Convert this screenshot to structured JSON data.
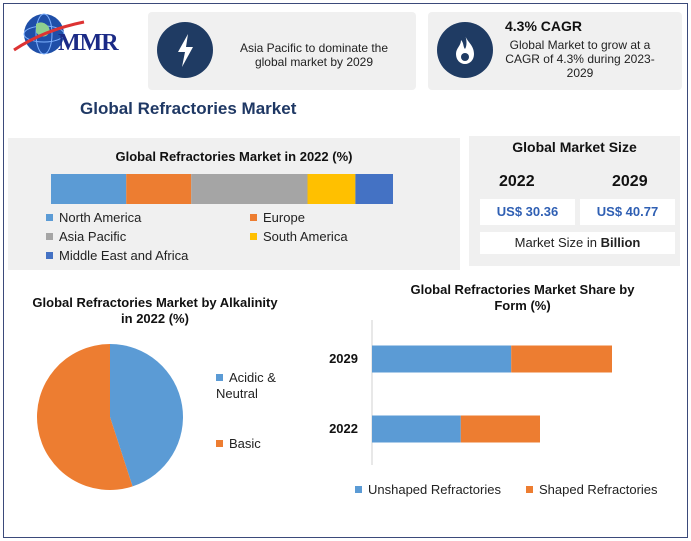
{
  "logo": {
    "text": "MMR"
  },
  "highlights": [
    {
      "icon": "lightning-icon",
      "text": "Asia Pacific to dominate the global market by 2029"
    },
    {
      "icon": "flame-icon",
      "heading": "4.3% CAGR",
      "text": "Global Market to grow at a CAGR of 4.3% during 2023-2029"
    }
  ],
  "main_title": "Global Refractories Market",
  "market_size": {
    "title": "Global Market Size",
    "years": [
      "2022",
      "2029"
    ],
    "values": [
      "US$ 30.36",
      "US$ 40.77"
    ],
    "unit_label": "Market Size in ",
    "unit_bold": "Billion"
  },
  "colors": {
    "blue": "#5b9bd5",
    "orange": "#ed7d31",
    "gray": "#a5a5a5",
    "yellow": "#ffc000",
    "darkblue": "#4472c4"
  },
  "chart_data": [
    {
      "type": "bar",
      "title": "Global Refractories Market in 2022 (%)",
      "stacked": true,
      "orientation": "horizontal",
      "series": [
        {
          "name": "North America",
          "values": [
            22
          ],
          "color": "#5b9bd5"
        },
        {
          "name": "Europe",
          "values": [
            19
          ],
          "color": "#ed7d31"
        },
        {
          "name": "Asia Pacific",
          "values": [
            34
          ],
          "color": "#a5a5a5"
        },
        {
          "name": "South America",
          "values": [
            14
          ],
          "color": "#ffc000"
        },
        {
          "name": "Middle East and Africa",
          "values": [
            11
          ],
          "color": "#4472c4"
        }
      ]
    },
    {
      "type": "pie",
      "title": "Global Refractories Market by Alkalinity in 2022 (%)",
      "labels": [
        "Acidic & Neutral",
        "Basic"
      ],
      "values": [
        45,
        55
      ],
      "colors": [
        "#5b9bd5",
        "#ed7d31"
      ]
    },
    {
      "type": "bar",
      "title": "Global Refractories Market Share by Form (%)",
      "stacked": true,
      "orientation": "horizontal",
      "categories": [
        "2029",
        "2022"
      ],
      "series": [
        {
          "name": "Unshaped Refractories",
          "values": [
            58,
            37
          ],
          "color": "#5b9bd5"
        },
        {
          "name": "Shaped Refractories",
          "values": [
            42,
            33
          ],
          "color": "#ed7d31"
        }
      ]
    }
  ]
}
